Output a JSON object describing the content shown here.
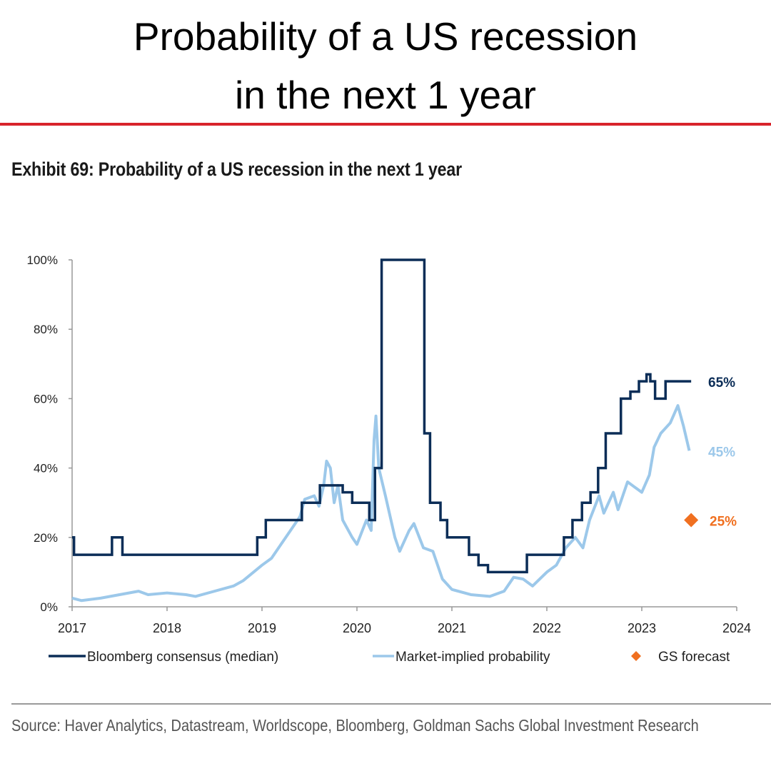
{
  "headline": {
    "line1": "Probability of a US recession",
    "line2": "in the next 1 year"
  },
  "exhibit_title": "Exhibit 69: Probability of a US recession in the next 1 year",
  "source": "Source: Haver Analytics, Datastream, Worldscope, Bloomberg, Goldman Sachs Global Investment Research",
  "colors": {
    "bloomberg": "#0b2d57",
    "market": "#9cc8ea",
    "gs": "#f07020",
    "accent_rule": "#d8242b"
  },
  "chart_data": {
    "type": "line",
    "title": "Exhibit 69: Probability of a US recession in the next 1 year",
    "xlim": [
      2017,
      2024
    ],
    "ylim": [
      0,
      100
    ],
    "x_ticks": [
      "2017",
      "2018",
      "2019",
      "2020",
      "2021",
      "2022",
      "2023",
      "2024"
    ],
    "y_ticks": [
      "0%",
      "20%",
      "40%",
      "60%",
      "80%",
      "100%"
    ],
    "grid": false,
    "legend_position": "bottom",
    "series": [
      {
        "name": "Bloomberg consensus (median)",
        "style": "step",
        "end_label": "65%",
        "points": [
          [
            2017.0,
            20
          ],
          [
            2017.02,
            15
          ],
          [
            2017.42,
            20
          ],
          [
            2017.53,
            15
          ],
          [
            2018.95,
            20
          ],
          [
            2019.04,
            25
          ],
          [
            2019.42,
            30
          ],
          [
            2019.61,
            35
          ],
          [
            2019.85,
            33
          ],
          [
            2019.95,
            30
          ],
          [
            2020.13,
            25
          ],
          [
            2020.19,
            40
          ],
          [
            2020.26,
            100
          ],
          [
            2020.71,
            50
          ],
          [
            2020.77,
            30
          ],
          [
            2020.88,
            25
          ],
          [
            2020.95,
            20
          ],
          [
            2021.18,
            15
          ],
          [
            2021.28,
            12
          ],
          [
            2021.38,
            10
          ],
          [
            2021.79,
            15
          ],
          [
            2022.18,
            20
          ],
          [
            2022.27,
            25
          ],
          [
            2022.37,
            30
          ],
          [
            2022.46,
            33
          ],
          [
            2022.54,
            40
          ],
          [
            2022.62,
            50
          ],
          [
            2022.78,
            60
          ],
          [
            2022.88,
            62
          ],
          [
            2022.97,
            65
          ],
          [
            2023.05,
            67
          ],
          [
            2023.09,
            65
          ],
          [
            2023.14,
            60
          ],
          [
            2023.25,
            65
          ],
          [
            2023.52,
            65
          ]
        ]
      },
      {
        "name": "Market-implied probability",
        "style": "line",
        "end_label": "45%",
        "points": [
          [
            2017.0,
            2.5
          ],
          [
            2017.1,
            1.8
          ],
          [
            2017.3,
            2.5
          ],
          [
            2017.5,
            3.5
          ],
          [
            2017.7,
            4.5
          ],
          [
            2017.8,
            3.5
          ],
          [
            2018.0,
            4
          ],
          [
            2018.2,
            3.5
          ],
          [
            2018.3,
            3
          ],
          [
            2018.5,
            4.5
          ],
          [
            2018.7,
            6
          ],
          [
            2018.8,
            7.5
          ],
          [
            2019.0,
            12
          ],
          [
            2019.1,
            14
          ],
          [
            2019.2,
            18
          ],
          [
            2019.3,
            22
          ],
          [
            2019.4,
            26
          ],
          [
            2019.45,
            31
          ],
          [
            2019.55,
            32
          ],
          [
            2019.6,
            29
          ],
          [
            2019.65,
            35
          ],
          [
            2019.68,
            42
          ],
          [
            2019.72,
            40
          ],
          [
            2019.76,
            30
          ],
          [
            2019.8,
            35
          ],
          [
            2019.85,
            25
          ],
          [
            2019.95,
            20
          ],
          [
            2020.0,
            18
          ],
          [
            2020.1,
            25
          ],
          [
            2020.15,
            22
          ],
          [
            2020.18,
            48
          ],
          [
            2020.2,
            55
          ],
          [
            2020.23,
            40
          ],
          [
            2020.3,
            32
          ],
          [
            2020.4,
            20
          ],
          [
            2020.45,
            16
          ],
          [
            2020.55,
            22
          ],
          [
            2020.6,
            24
          ],
          [
            2020.7,
            17
          ],
          [
            2020.8,
            16
          ],
          [
            2020.9,
            8
          ],
          [
            2021.0,
            5
          ],
          [
            2021.2,
            3.5
          ],
          [
            2021.4,
            3
          ],
          [
            2021.55,
            4.5
          ],
          [
            2021.65,
            8.5
          ],
          [
            2021.75,
            8
          ],
          [
            2021.85,
            6
          ],
          [
            2022.0,
            10
          ],
          [
            2022.1,
            12
          ],
          [
            2022.2,
            17
          ],
          [
            2022.3,
            20
          ],
          [
            2022.38,
            17
          ],
          [
            2022.45,
            25
          ],
          [
            2022.55,
            32
          ],
          [
            2022.6,
            27
          ],
          [
            2022.7,
            33
          ],
          [
            2022.75,
            28
          ],
          [
            2022.85,
            36
          ],
          [
            2022.95,
            34
          ],
          [
            2023.0,
            33
          ],
          [
            2023.08,
            38
          ],
          [
            2023.13,
            46
          ],
          [
            2023.2,
            50
          ],
          [
            2023.3,
            53
          ],
          [
            2023.38,
            58
          ],
          [
            2023.44,
            52
          ],
          [
            2023.5,
            45
          ]
        ]
      },
      {
        "name": "GS forecast",
        "style": "marker",
        "marker": "diamond",
        "end_label": "25%",
        "points": [
          [
            2023.52,
            25
          ]
        ]
      }
    ]
  }
}
